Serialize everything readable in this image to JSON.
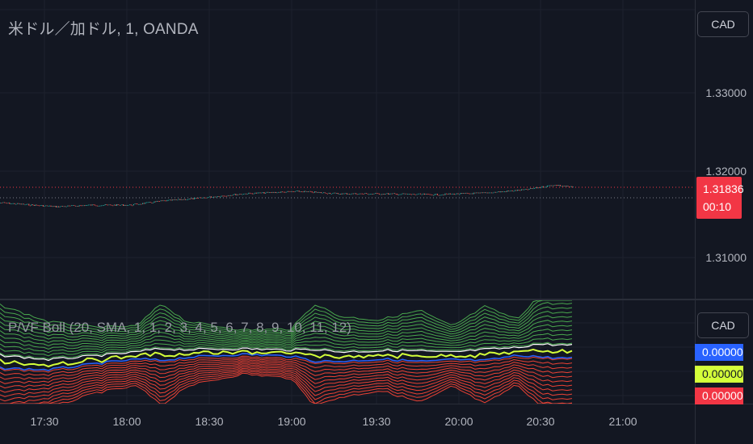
{
  "symbol": {
    "title": "米ドル／加ドル, 1, OANDA"
  },
  "currency_button": {
    "label": "CAD"
  },
  "indicator": {
    "title": "P/VF Boll (20, SMA, 1, 1, 2, 3, 4, 5, 6, 7, 8, 9, 10, 11, 12)",
    "currency_label": "CAD",
    "values": {
      "blue": "0.00000",
      "yellow": "0.00000",
      "red": "0.00000"
    }
  },
  "price_axis": {
    "labels": [
      "1.33000",
      "1.32000",
      "1.31000"
    ]
  },
  "last_price": {
    "value": "1.31836",
    "countdown": "00:10"
  },
  "time_axis": {
    "labels": [
      "17:30",
      "18:00",
      "18:30",
      "19:00",
      "19:30",
      "20:00",
      "20:30",
      "21:00"
    ]
  },
  "colors": {
    "background": "#131722",
    "grid": "#1e222d",
    "up": "#26a69a",
    "down": "#ef5350",
    "last_price_line": "#f23645",
    "band_green": "#4caf50",
    "band_red": "#f44336",
    "band_blue": "#2962ff",
    "band_white": "#ffffff",
    "band_yellow": "#d4ff3a"
  }
}
